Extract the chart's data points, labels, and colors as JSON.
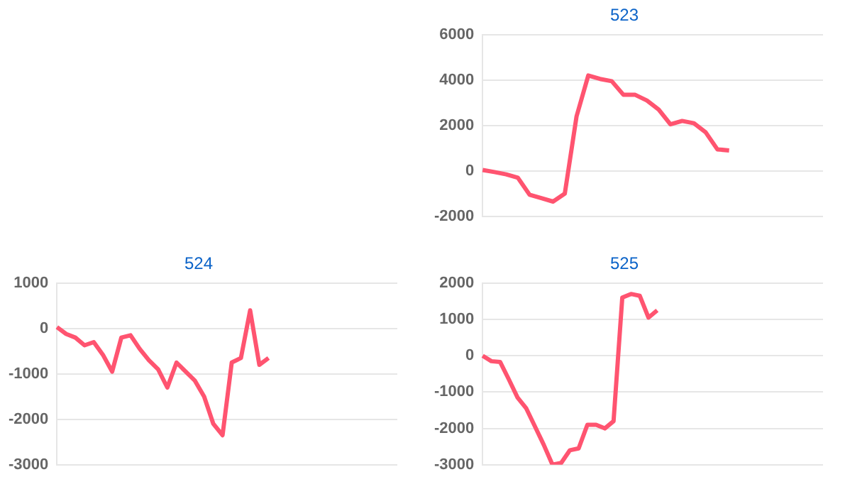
{
  "chart_data": [
    {
      "type": "line",
      "title": "523",
      "categories": [
        null,
        null,
        null,
        null,
        null,
        null,
        null,
        null,
        null,
        null,
        null,
        null,
        null,
        null,
        null,
        null,
        null,
        null,
        null,
        null,
        null,
        null,
        null,
        null,
        null,
        null,
        null,
        null,
        null,
        null
      ],
      "series": [
        {
          "color": "#ff5470",
          "values": [
            40,
            -50,
            -150,
            -300,
            -1050,
            -1200,
            -1350,
            -1000,
            2400,
            4200,
            4050,
            3950,
            3350,
            3350,
            3100,
            2700,
            2050,
            2200,
            2100,
            1700,
            950,
            900,
            null,
            null,
            null,
            null,
            null,
            null,
            null,
            null
          ]
        }
      ],
      "ylim": [
        -2000,
        6000
      ],
      "yticks": [
        -2000,
        0,
        2000,
        4000,
        6000
      ],
      "grid": "y",
      "tick_labels": "y",
      "marker": "none",
      "legend": false
    },
    {
      "type": "line",
      "title": "524",
      "categories": [
        null,
        null,
        null,
        null,
        null,
        null,
        null,
        null,
        null,
        null,
        null,
        null,
        null,
        null,
        null,
        null,
        null,
        null,
        null,
        null,
        null,
        null,
        null,
        null,
        null,
        null,
        null,
        null,
        null,
        null,
        null,
        null,
        null,
        null,
        null,
        null,
        null,
        null
      ],
      "series": [
        {
          "color": "#ff5470",
          "values": [
            30,
            -120,
            -200,
            -370,
            -300,
            -580,
            -950,
            -200,
            -150,
            -450,
            -700,
            -900,
            -1300,
            -750,
            -950,
            -1150,
            -1500,
            -2100,
            -2350,
            -750,
            -650,
            400,
            -800,
            -650,
            null,
            null,
            null,
            null,
            null,
            null,
            null,
            null,
            null,
            null,
            null,
            null,
            null,
            null
          ]
        }
      ],
      "ylim": [
        -3000,
        1000
      ],
      "yticks": [
        -3000,
        -2000,
        -1000,
        0,
        1000
      ],
      "grid": "y",
      "tick_labels": "y",
      "marker": "none",
      "legend": false
    },
    {
      "type": "line",
      "title": "525",
      "categories": [
        null,
        null,
        null,
        null,
        null,
        null,
        null,
        null,
        null,
        null,
        null,
        null,
        null,
        null,
        null,
        null,
        null,
        null,
        null,
        null,
        null,
        null,
        null,
        null,
        null,
        null,
        null,
        null,
        null,
        null,
        null,
        null,
        null,
        null,
        null,
        null,
        null,
        null,
        null,
        null
      ],
      "series": [
        {
          "color": "#ff5470",
          "values": [
            0,
            -150,
            -170,
            -650,
            -1150,
            -1450,
            -1950,
            -2450,
            -3000,
            -2950,
            -2600,
            -2550,
            -1900,
            -1900,
            -2000,
            -1800,
            1600,
            1700,
            1650,
            1050,
            1250,
            null,
            null,
            null,
            null,
            null,
            null,
            null,
            null,
            null,
            null,
            null,
            null,
            null,
            null,
            null,
            null,
            null,
            null,
            null
          ]
        }
      ],
      "ylim": [
        -3000,
        2000
      ],
      "yticks": [
        -3000,
        -2000,
        -1000,
        0,
        1000,
        2000
      ],
      "grid": "y",
      "tick_labels": "y",
      "marker": "none",
      "legend": false
    }
  ]
}
